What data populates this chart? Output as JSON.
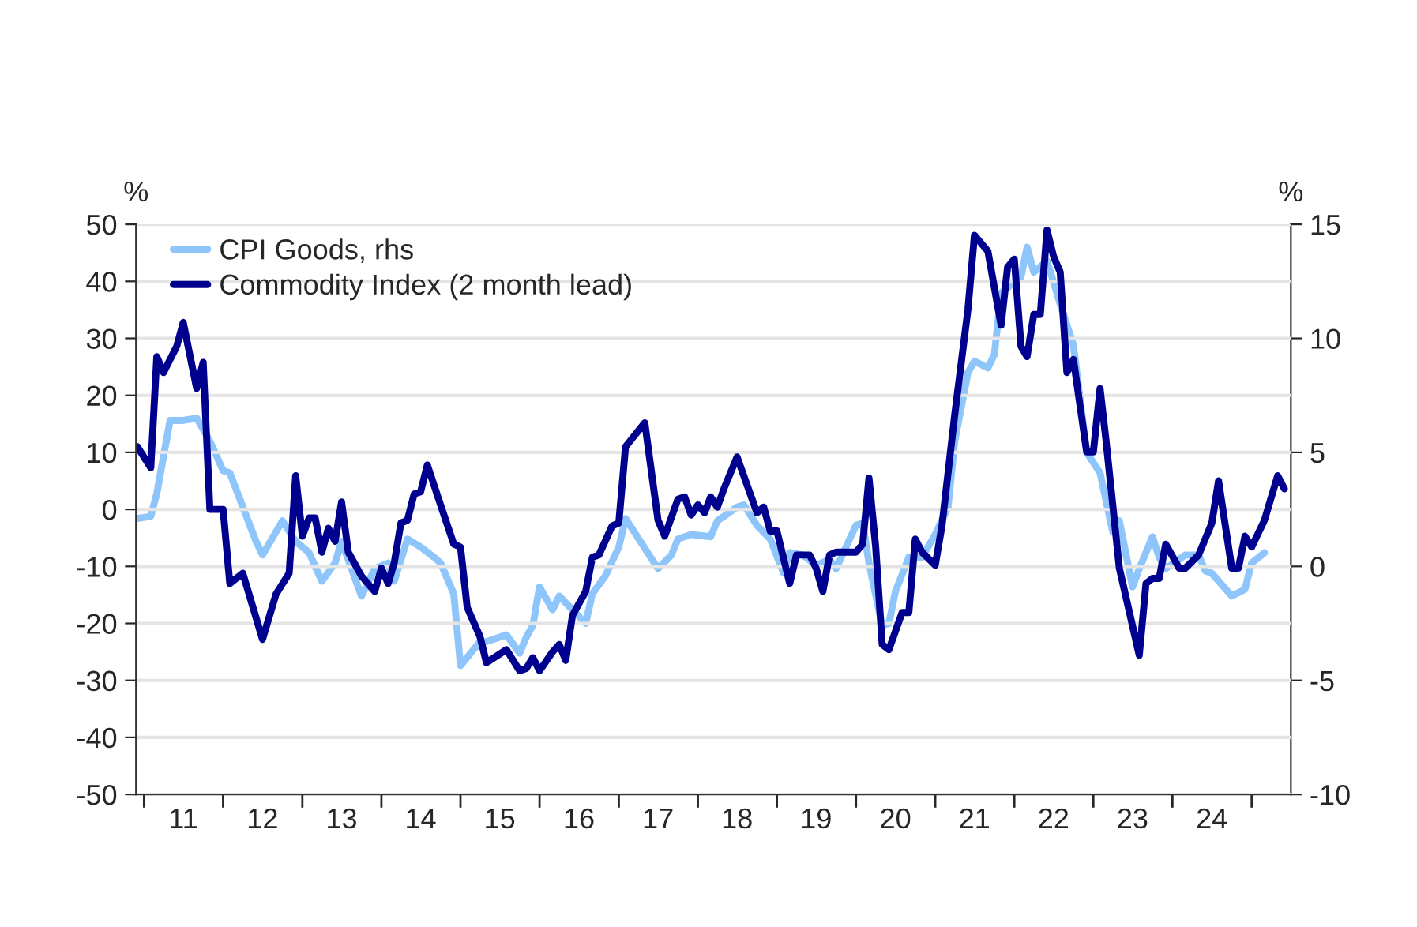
{
  "chart_data": {
    "type": "line",
    "ylabel": "%",
    "y2label": "%",
    "xlim": [
      "2010-11-25",
      "2025-07-01"
    ],
    "xticks": [
      {
        "value": "2011-01",
        "label": null
      },
      {
        "value": "2011-07",
        "label": "11"
      },
      {
        "value": "2012-01",
        "label": null
      },
      {
        "value": "2012-07",
        "label": "12"
      },
      {
        "value": "2013-01",
        "label": null
      },
      {
        "value": "2013-07",
        "label": "13"
      },
      {
        "value": "2014-01",
        "label": null
      },
      {
        "value": "2014-07",
        "label": "14"
      },
      {
        "value": "2015-01",
        "label": null
      },
      {
        "value": "2015-07",
        "label": "15"
      },
      {
        "value": "2016-01",
        "label": null
      },
      {
        "value": "2016-07",
        "label": "16"
      },
      {
        "value": "2017-01",
        "label": null
      },
      {
        "value": "2017-07",
        "label": "17"
      },
      {
        "value": "2018-01",
        "label": null
      },
      {
        "value": "2018-07",
        "label": "18"
      },
      {
        "value": "2019-01",
        "label": null
      },
      {
        "value": "2019-07",
        "label": "19"
      },
      {
        "value": "2020-01",
        "label": null
      },
      {
        "value": "2020-07",
        "label": "20"
      },
      {
        "value": "2021-01",
        "label": null
      },
      {
        "value": "2021-07",
        "label": "21"
      },
      {
        "value": "2022-01",
        "label": null
      },
      {
        "value": "2022-07",
        "label": "22"
      },
      {
        "value": "2023-01",
        "label": null
      },
      {
        "value": "2023-07",
        "label": "23"
      },
      {
        "value": "2024-01",
        "label": null
      },
      {
        "value": "2024-07",
        "label": "24"
      },
      {
        "value": "2025-01",
        "label": null
      }
    ],
    "ylim": [
      -50,
      50
    ],
    "yticks": [
      -50,
      -40,
      -30,
      -20,
      -10,
      0,
      10,
      20,
      30,
      40,
      50
    ],
    "y2lim": [
      -10,
      15
    ],
    "y2ticks": [
      -10,
      -5,
      0,
      5,
      10,
      15
    ],
    "grid": "y",
    "legend": "top left",
    "marker": "none",
    "line_style": "solid",
    "series": [
      {
        "name": "CPI Goods, rhs",
        "color": "#8ec5fb",
        "axis": "y2",
        "x": [
          "2010-12",
          "2011-02",
          "2011-03",
          "2011-05",
          "2011-07",
          "2011-09",
          "2011-11",
          "2012-01",
          "2012-02",
          "2012-06",
          "2012-07",
          "2012-10",
          "2012-12",
          "2013-02",
          "2013-04",
          "2013-06",
          "2013-07",
          "2013-10",
          "2013-12",
          "2014-02",
          "2014-03",
          "2014-05",
          "2014-07",
          "2014-09",
          "2014-10",
          "2014-12",
          "2015-01",
          "2015-04",
          "2015-05",
          "2015-08",
          "2015-10",
          "2015-11",
          "2015-12",
          "2016-01",
          "2016-03",
          "2016-04",
          "2016-06",
          "2016-08",
          "2016-09",
          "2016-11",
          "2017-01",
          "2017-02",
          "2017-07",
          "2017-09",
          "2017-10",
          "2017-12",
          "2018-03",
          "2018-04",
          "2018-07",
          "2018-08",
          "2018-10",
          "2018-12",
          "2019-02",
          "2019-03",
          "2019-05",
          "2019-07",
          "2019-09",
          "2019-10",
          "2020-01",
          "2020-02",
          "2020-03",
          "2020-05",
          "2020-06",
          "2020-07",
          "2020-09",
          "2020-11",
          "2021-01",
          "2021-03",
          "2021-04",
          "2021-06",
          "2021-07",
          "2021-09",
          "2021-10",
          "2021-11",
          "2022-02",
          "2022-03",
          "2022-04",
          "2022-06",
          "2022-08",
          "2022-10",
          "2022-12",
          "2023-02",
          "2023-04",
          "2023-05",
          "2023-07",
          "2023-08",
          "2023-10",
          "2023-11",
          "2023-12",
          "2024-03",
          "2024-05",
          "2024-06",
          "2024-07",
          "2024-10",
          "2024-12",
          "2025-01",
          "2025-03"
        ],
        "values": [
          2.1,
          2.2,
          3.2,
          6.4,
          6.4,
          6.5,
          5.5,
          4.2,
          4.1,
          1.1,
          0.5,
          2.0,
          1.1,
          0.6,
          -0.65,
          0.15,
          1.1,
          -1.3,
          -0.1,
          0.15,
          -0.65,
          1.2,
          0.85,
          0.4,
          0.15,
          -1.2,
          -4.35,
          -3.3,
          -3.3,
          -3.0,
          -3.8,
          -3.1,
          -2.6,
          -0.9,
          -1.9,
          -1.3,
          -1.9,
          -2.5,
          -1.2,
          -0.4,
          0.85,
          2.1,
          -0.1,
          0.5,
          1.2,
          1.4,
          1.3,
          2.0,
          2.6,
          2.7,
          1.8,
          1.2,
          -0.3,
          0.6,
          0.5,
          0.05,
          0.3,
          -0.1,
          1.8,
          1.9,
          0.15,
          -2.6,
          -2.5,
          -1.1,
          0.4,
          0.4,
          1.4,
          2.6,
          5.5,
          8.5,
          9.0,
          8.7,
          9.3,
          12.0,
          12.7,
          14.0,
          12.9,
          13.4,
          11.5,
          9.7,
          5.0,
          4.1,
          1.5,
          2.0,
          -0.9,
          -0.1,
          1.3,
          0.4,
          -0.1,
          0.5,
          0.5,
          -0.2,
          -0.3,
          -1.3,
          -1.0,
          0.15,
          0.6
        ]
      },
      {
        "name": "Commodity Index (2 month lead)",
        "color": "#00008f",
        "x": [
          "2010-12",
          "2011-02",
          "2011-03",
          "2011-04",
          "2011-06",
          "2011-07",
          "2011-09",
          "2011-10",
          "2011-11",
          "2012-01",
          "2012-02",
          "2012-04",
          "2012-07",
          "2012-09",
          "2012-11",
          "2012-12",
          "2013-01",
          "2013-02",
          "2013-03",
          "2013-04",
          "2013-05",
          "2013-06",
          "2013-07",
          "2013-08",
          "2013-10",
          "2013-12",
          "2014-01",
          "2014-02",
          "2014-03",
          "2014-04",
          "2014-05",
          "2014-06",
          "2014-07",
          "2014-08",
          "2014-10",
          "2014-12",
          "2015-01",
          "2015-02",
          "2015-04",
          "2015-05",
          "2015-08",
          "2015-10",
          "2015-11",
          "2015-12",
          "2016-01",
          "2016-03",
          "2016-04",
          "2016-05",
          "2016-06",
          "2016-08",
          "2016-09",
          "2016-10",
          "2016-12",
          "2017-01",
          "2017-02",
          "2017-05",
          "2017-07",
          "2017-08",
          "2017-10",
          "2017-11",
          "2017-12",
          "2018-01",
          "2018-02",
          "2018-03",
          "2018-04",
          "2018-05",
          "2018-07",
          "2018-10",
          "2018-11",
          "2018-12",
          "2019-01",
          "2019-03",
          "2019-04",
          "2019-06",
          "2019-07",
          "2019-08",
          "2019-09",
          "2019-10",
          "2020-01",
          "2020-02",
          "2020-03",
          "2020-04",
          "2020-05",
          "2020-06",
          "2020-08",
          "2020-09",
          "2020-10",
          "2020-11",
          "2021-01",
          "2021-02",
          "2021-04",
          "2021-06",
          "2021-07",
          "2021-09",
          "2021-11",
          "2021-12",
          "2022-01",
          "2022-02",
          "2022-03",
          "2022-04",
          "2022-05",
          "2022-06",
          "2022-07",
          "2022-08",
          "2022-09",
          "2022-10",
          "2022-12",
          "2023-01",
          "2023-02",
          "2023-03",
          "2023-05",
          "2023-08",
          "2023-09",
          "2023-10",
          "2023-11",
          "2023-12",
          "2024-02",
          "2024-03",
          "2024-05",
          "2024-07",
          "2024-08",
          "2024-10",
          "2024-11",
          "2024-12",
          "2025-01",
          "2025-03",
          "2025-05",
          "2025-06"
        ],
        "values": [
          11,
          7.3,
          26.8,
          24,
          28.6,
          32.8,
          21.2,
          25.8,
          0,
          0,
          -13,
          -11.2,
          -22.8,
          -14.9,
          -11.2,
          5.9,
          -4.7,
          -1.5,
          -1.5,
          -7.5,
          -3.3,
          -5.6,
          1.3,
          -7.5,
          -11.7,
          -14.4,
          -10.3,
          -13,
          -9.4,
          -2.4,
          -1.9,
          2.7,
          3.1,
          7.8,
          0.8,
          -6.1,
          -6.6,
          -17.2,
          -22.3,
          -26.9,
          -24.6,
          -28.3,
          -27.9,
          -26,
          -28.3,
          -25,
          -23.7,
          -26.5,
          -18.6,
          -14.4,
          -8.4,
          -8,
          -2.9,
          -2.4,
          11,
          15.2,
          -1.9,
          -4.7,
          1.8,
          2.2,
          -1,
          0.8,
          -0.6,
          2.2,
          0.4,
          3.6,
          9.2,
          -0.6,
          0.4,
          -3.8,
          -3.8,
          -13,
          -8,
          -8,
          -10.3,
          -14.4,
          -8,
          -7.5,
          -7.5,
          -6.1,
          5.5,
          -6.6,
          -23.7,
          -24.6,
          -18.1,
          -18.1,
          -5.2,
          -7.5,
          -9.8,
          -2.9,
          16.6,
          35.1,
          48.1,
          45.3,
          32.3,
          42.5,
          43.9,
          28.6,
          26.8,
          34.2,
          34.2,
          49,
          44.4,
          41.6,
          24,
          26.3,
          10.1,
          10.1,
          21.2,
          11.9,
          -10.3,
          -25.6,
          -13,
          -12.1,
          -12.1,
          -6.1,
          -10.3,
          -10.3,
          -8,
          -2.4,
          5,
          -10.3,
          -10.3,
          -4.7,
          -6.6,
          -1.9,
          5.9,
          3.6
        ]
      }
    ]
  }
}
